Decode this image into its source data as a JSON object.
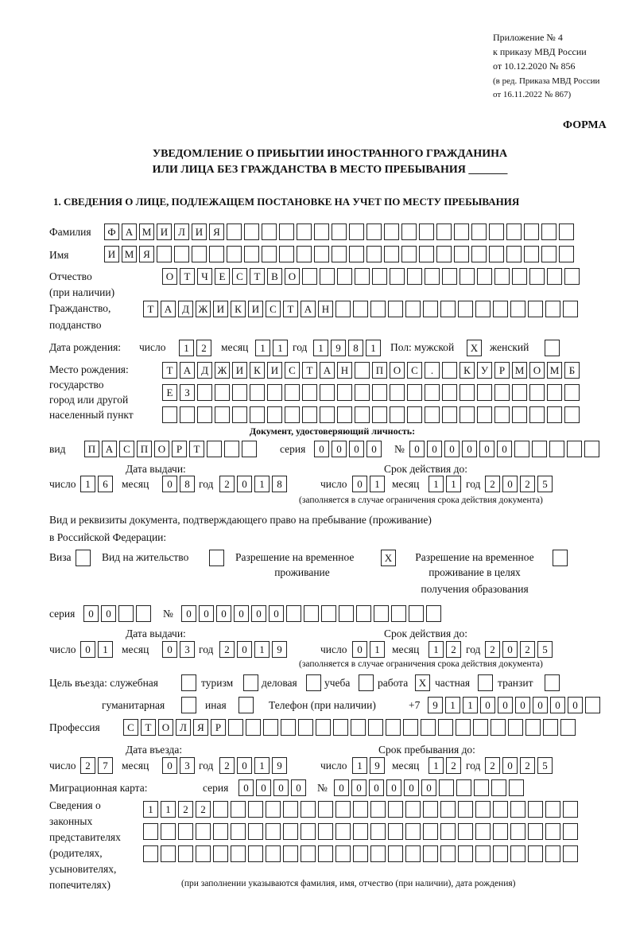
{
  "header": {
    "line1": "Приложение № 4",
    "line2": "к приказу МВД России",
    "line3": "от 10.12.2020 № 856",
    "line4": "(в ред. Приказа МВД России",
    "line5": "от 16.11.2022 № 867)",
    "form_label": "ФОРМА",
    "title1": "УВЕДОМЛЕНИЕ О ПРИБЫТИИ ИНОСТРАННОГО ГРАЖДАНИНА",
    "title2": "ИЛИ ЛИЦА БЕЗ ГРАЖДАНСТВА В МЕСТО ПРЕБЫВАНИЯ _______",
    "section1": "1. СВЕДЕНИЯ О ЛИЦЕ, ПОДЛЕЖАЩЕМ ПОСТАНОВКЕ НА УЧЕТ ПО МЕСТУ ПРЕБЫВАНИЯ"
  },
  "labels": {
    "surname": "Фамилия",
    "name": "Имя",
    "patronymic1": "Отчество",
    "patronymic2": "(при наличии)",
    "citizenship1": "Гражданство,",
    "citizenship2": "подданство",
    "birth_date": "Дата рождения:",
    "day": "число",
    "month": "месяц",
    "year": "год",
    "sex_male": "Пол: мужской",
    "sex_female": "женский",
    "birthplace1": "Место рождения:",
    "birthplace2": "государство",
    "birthplace3": "город или другой",
    "birthplace4": "населенный пункт",
    "id_doc": "Документ, удостоверяющий личность:",
    "kind": "вид",
    "series": "серия",
    "number": "№",
    "issue_date": "Дата выдачи:",
    "valid_until": "Срок действия до:",
    "valid_note": "(заполняется в случае ограничения срока действия документа)",
    "stay_doc1": "Вид и реквизиты документа, подтверждающего право на пребывание (проживание)",
    "stay_doc2": "в Российской Федерации:",
    "visa": "Виза",
    "residence": "Вид на жительство",
    "trp1": "Разрешение на временное",
    "trp2": "проживание",
    "trpe1": "Разрешение на временное",
    "trpe2": "проживание в целях",
    "trpe3": "получения образования",
    "purpose": "Цель въезда: служебная",
    "tourism": "туризм",
    "business": "деловая",
    "study": "учеба",
    "work": "работа",
    "private": "частная",
    "transit": "транзит",
    "humanitarian": "гуманитарная",
    "other": "иная",
    "phone": "Телефон (при наличии)",
    "phone_prefix": "+7",
    "profession": "Профессия",
    "entry_date": "Дата въезда:",
    "stay_until": "Срок пребывания до:",
    "migration_card": "Миграционная карта:",
    "reps1": "Сведения о",
    "reps2": "законных",
    "reps3": "представителях",
    "reps4": "(родителях,",
    "reps5": "усыновителях,",
    "reps6": "попечителях)",
    "reps_note": "(при заполнении указываются фамилия, имя, отчество (при наличии), дата рождения)"
  },
  "values": {
    "surname": "ФАМИЛИЯ",
    "name": "ИМЯ",
    "patronymic": "ОТЧЕСТВО",
    "citizenship": "ТАДЖИКИСТАН",
    "birth_day": "12",
    "birth_month": "11",
    "birth_year": "1981",
    "sex_male": "X",
    "sex_female": "",
    "birthplace1": "ТАДЖИКИСТАН ПОС. КУРМОМБ",
    "birthplace2": "ЕЗ",
    "birthplace3": "",
    "id_kind": "ПАСПОРТ",
    "id_series": "0000",
    "id_number": "000000",
    "id_issue_day": "16",
    "id_issue_month": "08",
    "id_issue_year": "2018",
    "id_valid_day": "01",
    "id_valid_month": "11",
    "id_valid_year": "2025",
    "visa": "",
    "residence": "",
    "trp": "X",
    "trpe": "",
    "stay_series": "00",
    "stay_number": "000000",
    "stay_issue_day": "01",
    "stay_issue_month": "03",
    "stay_issue_year": "2019",
    "stay_valid_day": "01",
    "stay_valid_month": "12",
    "stay_valid_year": "2025",
    "p_official": "",
    "p_tourism": "",
    "p_business": "",
    "p_study": "",
    "p_work": "X",
    "p_private": "",
    "p_transit": "",
    "p_humanitarian": "",
    "p_other": "",
    "phone": "911000000",
    "profession": "СТОЛЯР",
    "entry_day": "27",
    "entry_month": "03",
    "entry_year": "2019",
    "stay_day": "19",
    "stay_month": "12",
    "stay_year": "2025",
    "mc_series": "0000",
    "mc_number": "000000",
    "reps1": "1122",
    "reps2": "",
    "reps3": ""
  }
}
